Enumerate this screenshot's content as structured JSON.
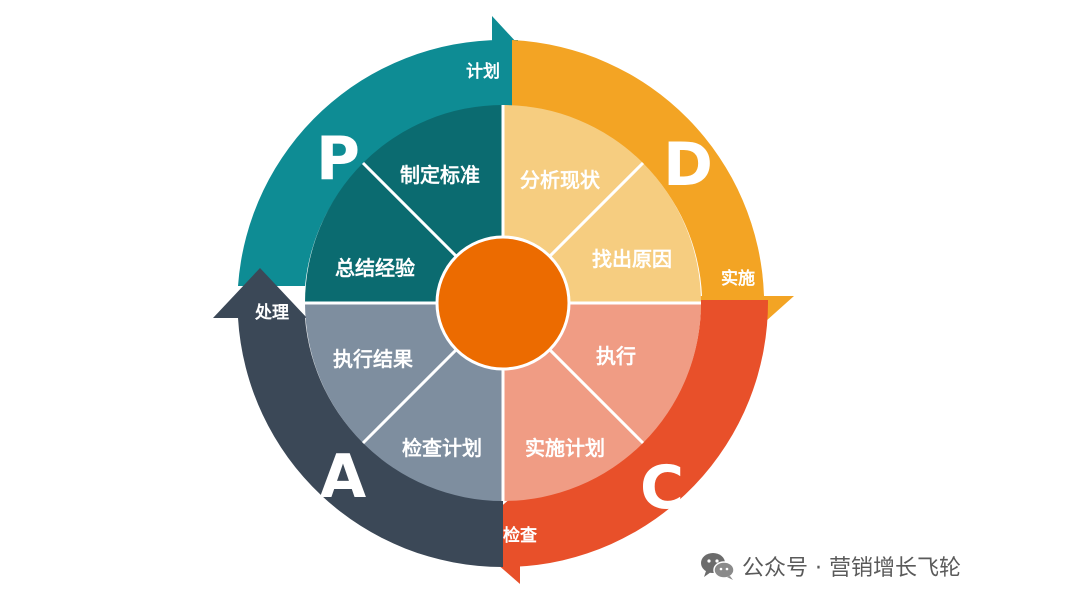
{
  "diagram": {
    "colors": {
      "plan": "#0e8c94",
      "plan_inner": "#0b6b70",
      "do": "#f3a424",
      "do_inner": "#f6cd80",
      "check": "#e8502a",
      "check_inner": "#f09c84",
      "act": "#3b4857",
      "act_inner": "#7e8e9f",
      "center": "#ec6b00"
    },
    "phases": {
      "plan": {
        "letter": "P",
        "arrow_label": "计划"
      },
      "do": {
        "letter": "D",
        "arrow_label": "实施"
      },
      "check": {
        "letter": "C",
        "arrow_label": "检查"
      },
      "act": {
        "letter": "A",
        "arrow_label": "处理"
      }
    },
    "sectors": {
      "plan_1": "制定标准",
      "plan_2": "总结经验",
      "do_1": "分析现状",
      "do_2": "找出原因",
      "check_1": "执行",
      "check_2": "实施计划",
      "act_1": "检查计划",
      "act_2": "执行结果"
    }
  },
  "watermark": {
    "text": "公众号 · 营销增长飞轮",
    "icon": "wechat-icon"
  }
}
